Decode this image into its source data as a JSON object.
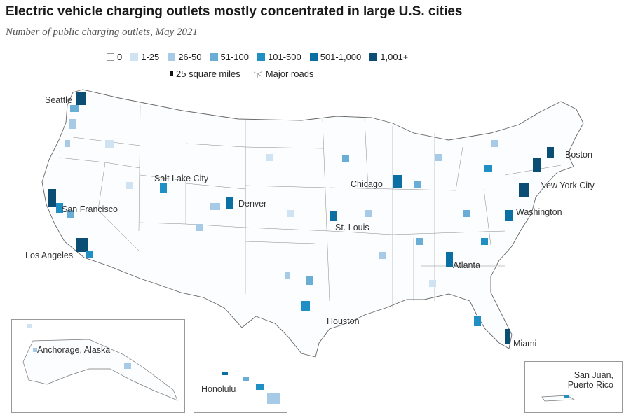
{
  "title": "Electric vehicle charging outlets mostly concentrated in large U.S. cities",
  "subtitle": "Number of public charging outlets, May 2021",
  "legend": {
    "bins": [
      {
        "label": "0",
        "color": "#ffffff"
      },
      {
        "label": "1-25",
        "color": "#cfe3f2"
      },
      {
        "label": "26-50",
        "color": "#a7cbe6"
      },
      {
        "label": "51-100",
        "color": "#6aaed6"
      },
      {
        "label": "101-500",
        "color": "#1f8fc4"
      },
      {
        "label": "501-1,000",
        "color": "#0a6fa3"
      },
      {
        "label": "1,001+",
        "color": "#0b4d73"
      }
    ],
    "scale_label": "25 square miles",
    "roads_label": "Major roads"
  },
  "cities": {
    "seattle": "Seattle",
    "salt_lake_city": "Salt Lake City",
    "san_francisco": "San Francisco",
    "los_angeles": "Los Angeles",
    "denver": "Denver",
    "chicago": "Chicago",
    "st_louis": "St. Louis",
    "boston": "Boston",
    "new_york": "New York City",
    "washington": "Washington",
    "atlanta": "Atlanta",
    "houston": "Houston",
    "miami": "Miami",
    "anchorage": "Anchorage, Alaska",
    "honolulu": "Honolulu",
    "san_juan_line1": "San Juan,",
    "san_juan_line2": "Puerto Rico"
  }
}
